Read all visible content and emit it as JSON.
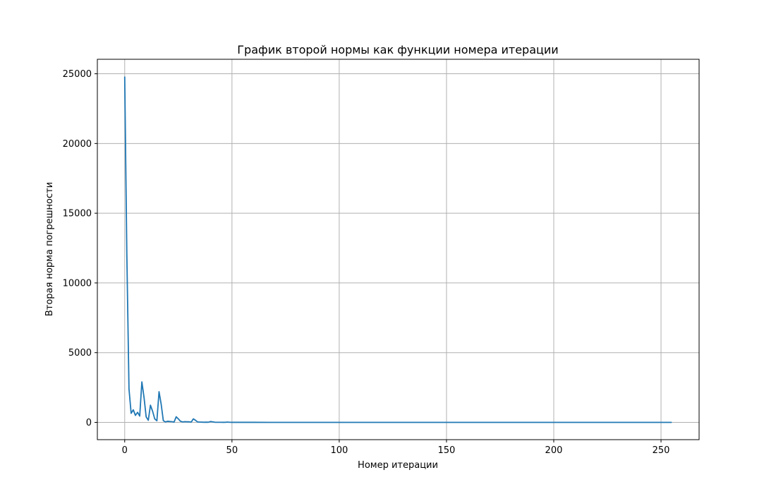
{
  "chart_data": {
    "type": "line",
    "title": "График второй нормы как функции номера итерации",
    "xlabel": "Номер итерации",
    "ylabel": "Вторая норма погрешности",
    "xlim": [
      -12.75,
      267.75
    ],
    "ylim": [
      -1240,
      26040
    ],
    "grid": true,
    "x_ticks": [
      0,
      50,
      100,
      150,
      200,
      250
    ],
    "y_ticks": [
      0,
      5000,
      10000,
      15000,
      20000,
      25000
    ],
    "series": [
      {
        "color": "#1f77b4",
        "points": [
          [
            0,
            24800
          ],
          [
            1,
            12000
          ],
          [
            2,
            2400
          ],
          [
            3,
            650
          ],
          [
            4,
            900
          ],
          [
            5,
            500
          ],
          [
            6,
            720
          ],
          [
            7,
            450
          ],
          [
            8,
            2900
          ],
          [
            9,
            1800
          ],
          [
            10,
            400
          ],
          [
            11,
            150
          ],
          [
            12,
            1230
          ],
          [
            13,
            800
          ],
          [
            14,
            250
          ],
          [
            15,
            120
          ],
          [
            16,
            2200
          ],
          [
            17,
            1300
          ],
          [
            18,
            120
          ],
          [
            19,
            30
          ],
          [
            20,
            80
          ],
          [
            21,
            60
          ],
          [
            22,
            50
          ],
          [
            23,
            20
          ],
          [
            24,
            400
          ],
          [
            25,
            250
          ],
          [
            26,
            80
          ],
          [
            27,
            30
          ],
          [
            28,
            50
          ],
          [
            29,
            40
          ],
          [
            30,
            40
          ],
          [
            31,
            20
          ],
          [
            32,
            250
          ],
          [
            33,
            150
          ],
          [
            34,
            30
          ],
          [
            35,
            20
          ],
          [
            36,
            15
          ],
          [
            37,
            10
          ],
          [
            38,
            15
          ],
          [
            39,
            10
          ],
          [
            40,
            60
          ],
          [
            41,
            40
          ],
          [
            42,
            10
          ],
          [
            43,
            8
          ],
          [
            44,
            6
          ],
          [
            45,
            5
          ],
          [
            46,
            4
          ],
          [
            47,
            10
          ],
          [
            48,
            20
          ],
          [
            49,
            5
          ],
          [
            50,
            3
          ],
          [
            60,
            2
          ],
          [
            80,
            1
          ],
          [
            100,
            1
          ],
          [
            150,
            1
          ],
          [
            200,
            1
          ],
          [
            255,
            1
          ]
        ]
      }
    ]
  }
}
